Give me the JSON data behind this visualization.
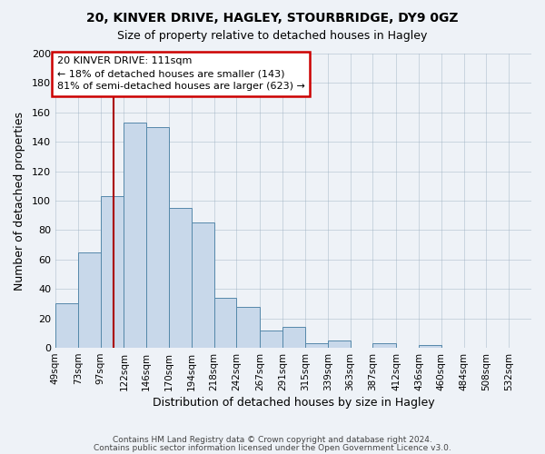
{
  "title1": "20, KINVER DRIVE, HAGLEY, STOURBRIDGE, DY9 0GZ",
  "title2": "Size of property relative to detached houses in Hagley",
  "xlabel": "Distribution of detached houses by size in Hagley",
  "ylabel": "Number of detached properties",
  "bar_labels": [
    "49sqm",
    "73sqm",
    "97sqm",
    "122sqm",
    "146sqm",
    "170sqm",
    "194sqm",
    "218sqm",
    "242sqm",
    "267sqm",
    "291sqm",
    "315sqm",
    "339sqm",
    "363sqm",
    "387sqm",
    "412sqm",
    "436sqm",
    "460sqm",
    "484sqm",
    "508sqm",
    "532sqm"
  ],
  "bar_values": [
    30,
    65,
    103,
    153,
    150,
    95,
    85,
    34,
    28,
    12,
    14,
    3,
    5,
    0,
    3,
    0,
    2,
    0,
    0,
    0,
    0
  ],
  "bar_color": "#c8d8ea",
  "bar_edge_color": "#5588aa",
  "property_line_x": 111,
  "bin_edges": [
    49,
    73,
    97,
    122,
    146,
    170,
    194,
    218,
    242,
    267,
    291,
    315,
    339,
    363,
    387,
    412,
    436,
    460,
    484,
    508,
    532,
    556
  ],
  "annotation_title": "20 KINVER DRIVE: 111sqm",
  "annotation_line1": "← 18% of detached houses are smaller (143)",
  "annotation_line2": "81% of semi-detached houses are larger (623) →",
  "annotation_box_color": "#ffffff",
  "annotation_box_edge": "#cc0000",
  "line_color": "#aa0000",
  "ylim": [
    0,
    200
  ],
  "yticks": [
    0,
    20,
    40,
    60,
    80,
    100,
    120,
    140,
    160,
    180,
    200
  ],
  "footer1": "Contains HM Land Registry data © Crown copyright and database right 2024.",
  "footer2": "Contains public sector information licensed under the Open Government Licence v3.0.",
  "background_color": "#eef2f7",
  "grid_color": "#9aaec0"
}
